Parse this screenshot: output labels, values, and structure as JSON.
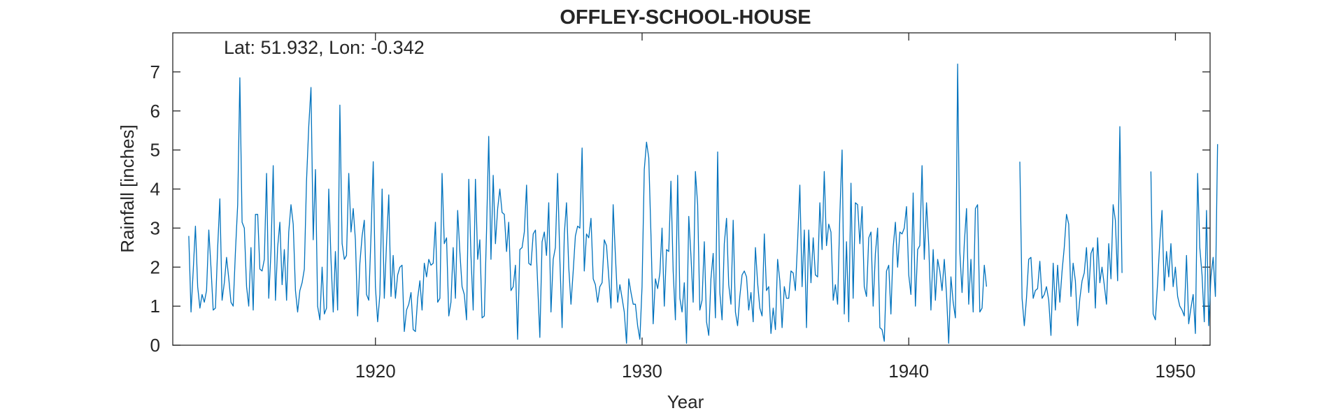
{
  "chart_data": {
    "type": "line",
    "title": "OFFLEY-SCHOOL-HOUSE",
    "xlabel": "Year",
    "ylabel": "Rainfall [inches]",
    "annotation": "Lat: 51.932, Lon: -0.342",
    "xlim": [
      1912.4,
      1951.3
    ],
    "ylim": [
      0,
      8
    ],
    "x_ticks": [
      1920,
      1930,
      1940,
      1950
    ],
    "x_tick_labels": [
      "1920",
      "1930",
      "1940",
      "1950"
    ],
    "y_ticks": [
      0,
      1,
      2,
      3,
      4,
      5,
      6,
      7
    ],
    "y_tick_labels": [
      "0",
      "1",
      "2",
      "3",
      "4",
      "5",
      "6",
      "7"
    ],
    "grid": false,
    "line_color": "#0072BD",
    "x_start": 1913.0,
    "x_step": 0.08333,
    "series": [
      {
        "values": [
          2.8,
          0.85,
          1.9,
          3.05,
          1.5,
          0.95,
          1.3,
          1.1,
          1.4,
          2.95,
          2.0,
          0.9,
          0.95,
          2.5,
          3.75,
          1.15,
          1.6,
          2.25,
          1.7,
          1.1,
          1.0,
          2.4,
          3.6,
          6.85,
          3.15,
          3.0,
          1.5,
          1.0,
          2.5,
          0.9,
          3.35,
          3.35,
          1.95,
          1.9,
          2.2,
          4.4,
          1.2,
          2.4,
          4.6,
          1.15,
          2.5,
          3.15,
          1.55,
          2.45,
          1.15,
          2.9,
          3.6,
          3.1,
          1.4,
          0.85,
          1.4,
          1.6,
          1.95,
          4.2,
          5.6,
          6.6,
          2.7,
          4.5,
          1.0,
          0.65,
          2.0,
          0.8,
          0.95,
          4.0,
          2.2,
          0.85,
          2.4,
          0.9,
          6.15,
          2.6,
          2.2,
          2.3,
          4.4,
          2.9,
          3.5,
          2.7,
          0.75,
          2.1,
          2.8,
          3.2,
          1.3,
          1.15,
          2.8,
          4.7,
          1.5,
          0.6,
          1.3,
          4.0,
          1.2,
          2.6,
          3.85,
          1.25,
          2.3,
          1.2,
          1.8,
          2.0,
          2.05,
          0.35,
          0.9,
          1.05,
          1.35,
          0.4,
          0.35,
          1.2,
          1.65,
          0.9,
          2.1,
          1.75,
          2.2,
          2.05,
          2.1,
          3.15,
          1.1,
          1.2,
          4.4,
          2.6,
          2.75,
          0.75,
          1.1,
          2.5,
          1.2,
          3.45,
          2.4,
          1.5,
          1.3,
          0.65,
          4.25,
          2.3,
          0.9,
          4.25,
          2.2,
          2.7,
          0.7,
          0.75,
          2.95,
          5.35,
          2.2,
          4.35,
          2.6,
          3.5,
          4.0,
          3.4,
          3.35,
          2.4,
          3.15,
          1.4,
          1.5,
          2.05,
          0.15,
          2.45,
          2.5,
          2.9,
          4.1,
          2.1,
          2.05,
          2.85,
          2.95,
          1.6,
          0.2,
          2.65,
          2.9,
          2.3,
          3.65,
          0.85,
          2.2,
          2.5,
          4.4,
          2.2,
          0.45,
          2.85,
          3.65,
          2.0,
          1.05,
          1.9,
          2.8,
          3.05,
          3.0,
          5.05,
          1.9,
          2.85,
          2.75,
          3.25,
          1.7,
          1.55,
          1.1,
          1.5,
          1.6,
          2.7,
          2.55,
          1.75,
          0.95,
          3.6,
          2.3,
          1.1,
          1.55,
          1.2,
          0.85,
          0.05,
          1.7,
          1.35,
          1.05,
          1.05,
          0.5,
          0.15,
          1.5,
          4.5,
          5.2,
          4.8,
          2.8,
          0.55,
          1.7,
          1.45,
          1.85,
          3.0,
          1.0,
          2.45,
          2.4,
          4.2,
          1.9,
          0.65,
          4.35,
          1.2,
          0.85,
          1.6,
          0.05,
          3.3,
          2.3,
          1.1,
          4.45,
          3.6,
          0.9,
          1.15,
          2.65,
          0.6,
          0.25,
          1.7,
          2.35,
          0.7,
          4.95,
          1.35,
          0.65,
          2.6,
          3.25,
          1.55,
          1.05,
          3.2,
          0.85,
          0.5,
          1.25,
          1.8,
          1.9,
          1.75,
          0.9,
          1.35,
          0.6,
          2.5,
          1.6,
          0.95,
          0.75,
          2.85,
          1.4,
          1.5,
          0.3,
          0.95,
          0.4,
          2.2,
          1.65,
          0.45,
          1.5,
          1.2,
          1.2,
          1.9,
          1.85,
          1.4,
          2.65,
          4.1,
          1.5,
          2.95,
          0.45,
          2.95,
          1.6,
          2.75,
          1.8,
          1.75,
          3.65,
          2.45,
          4.45,
          2.55,
          3.1,
          2.9,
          1.15,
          1.55,
          1.05,
          3.35,
          5.0,
          0.8,
          2.65,
          0.6,
          4.15,
          1.2,
          3.65,
          3.6,
          2.6,
          3.55,
          1.5,
          1.25,
          2.75,
          2.9,
          1.0,
          2.35,
          3.0,
          0.45,
          0.4,
          0.1,
          1.9,
          2.05,
          0.8,
          2.5,
          3.15,
          2.0,
          2.9,
          2.85,
          3.0,
          3.55,
          1.8,
          1.3,
          3.9,
          1.0,
          2.45,
          2.55,
          4.6,
          2.2,
          3.65,
          2.55,
          0.9,
          2.45,
          1.15,
          2.2,
          1.9,
          1.4,
          2.2,
          1.3,
          0.05,
          1.75,
          1.1,
          0.7,
          7.2,
          2.4,
          1.35,
          2.6,
          3.5,
          1.05,
          2.2,
          0.85,
          3.5,
          3.6,
          0.85,
          0.95,
          2.05,
          1.5,
          null,
          null,
          null,
          null,
          null,
          null,
          null,
          null,
          null,
          null,
          null,
          null,
          null,
          null,
          4.7,
          1.2,
          0.5,
          1.2,
          2.2,
          2.25,
          1.2,
          1.4,
          1.45,
          2.15,
          1.2,
          1.3,
          1.5,
          1.15,
          0.25,
          2.1,
          0.9,
          2.05,
          1.1,
          1.9,
          2.5,
          3.35,
          3.1,
          1.25,
          2.1,
          1.65,
          0.5,
          1.2,
          1.65,
          1.85,
          2.5,
          1.35,
          2.35,
          2.5,
          0.95,
          2.75,
          1.6,
          2.0,
          1.55,
          1.05,
          2.6,
          1.7,
          3.6,
          3.2,
          1.65,
          5.6,
          1.85,
          null,
          null,
          null,
          null,
          null,
          null,
          null,
          null,
          null,
          null,
          null,
          null,
          4.45,
          0.8,
          0.65,
          1.6,
          2.65,
          3.45,
          1.4,
          2.4,
          1.75,
          2.6,
          1.5,
          2.0,
          1.25,
          1.0,
          0.9,
          0.75,
          2.3,
          0.55,
          0.95,
          1.3,
          0.3,
          4.4,
          2.5,
          1.8,
          0.6,
          3.45,
          0.5,
          1.75,
          2.25,
          1.25,
          5.15
        ]
      }
    ]
  }
}
